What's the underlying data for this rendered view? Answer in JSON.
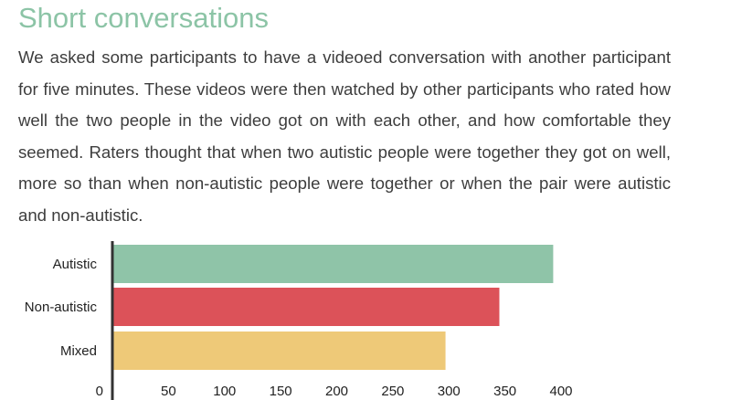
{
  "section": {
    "title": "Short conversations",
    "paragraph": "We asked some participants to have a videoed conversation with another participant for five minutes. These videos were then watched by other participants who rated how well the two people in the video got on with each other, and how comfortable they seemed. Raters thought that when two autistic people were together they got on well, more so than when non-autistic people were together or when the pair were autistic and non-autistic."
  },
  "chart_data": {
    "type": "bar",
    "orientation": "horizontal",
    "categories": [
      "Autistic",
      "Non-autistic",
      "Mixed"
    ],
    "values": [
      393,
      345,
      297
    ],
    "colors": [
      "#8fc4a8",
      "#dc5259",
      "#eec978"
    ],
    "xticks": [
      0,
      50,
      100,
      150,
      200,
      250,
      300,
      350,
      400
    ],
    "xlim": [
      0,
      400
    ],
    "title": "",
    "xlabel": "",
    "ylabel": "",
    "grid": false
  }
}
